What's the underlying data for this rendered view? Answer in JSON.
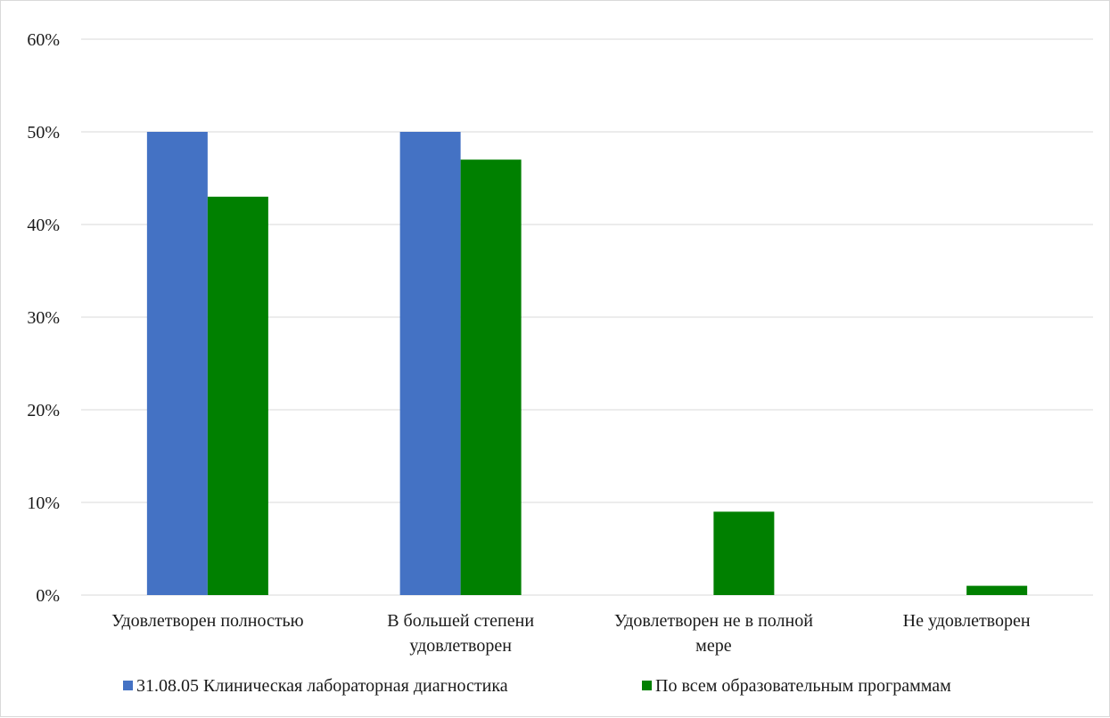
{
  "chart_data": {
    "type": "bar",
    "title": "",
    "xlabel": "",
    "ylabel": "",
    "ylim": [
      0,
      60
    ],
    "y_ticks": [
      "0%",
      "10%",
      "20%",
      "30%",
      "40%",
      "50%",
      "60%"
    ],
    "y_tick_values": [
      0,
      10,
      20,
      30,
      40,
      50,
      60
    ],
    "grid": true,
    "legend_position": "bottom",
    "categories": [
      [
        "Удовлетворен полностью"
      ],
      [
        "В большей степени",
        "удовлетворен"
      ],
      [
        "Удовлетворен не в полной",
        "мере"
      ],
      [
        "Не удовлетворен"
      ]
    ],
    "series": [
      {
        "name": "31.08.05 Клиническая лабораторная диагностика",
        "color": "#4472c4",
        "values": [
          50,
          50,
          0,
          0
        ]
      },
      {
        "name": "По всем образовательным программам",
        "color": "#008000",
        "values": [
          43,
          47,
          9,
          1
        ]
      }
    ]
  }
}
